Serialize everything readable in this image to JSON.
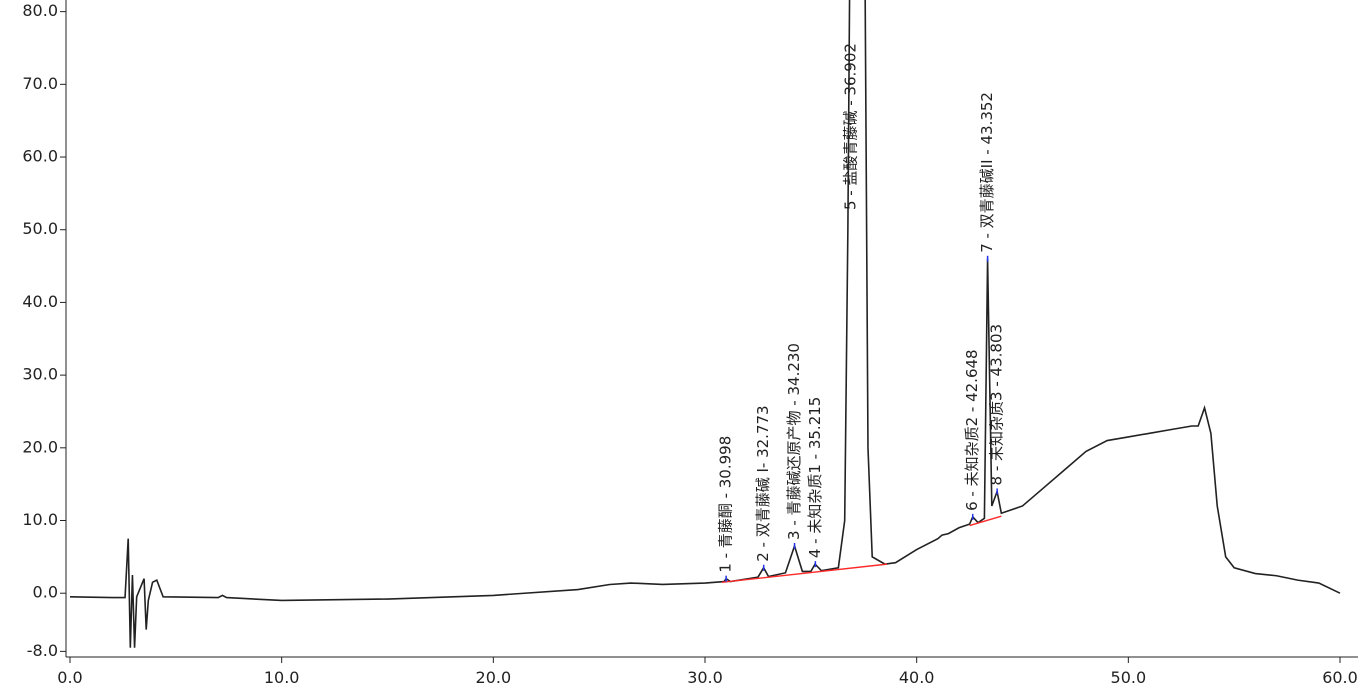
{
  "chart_data": {
    "type": "line",
    "x": [
      0,
      2,
      2.6,
      2.75,
      2.85,
      2.95,
      3.05,
      3.15,
      3.5,
      3.6,
      3.7,
      3.9,
      4.1,
      4.4,
      7,
      7.2,
      7.4,
      10,
      15,
      20,
      24,
      25.5,
      26.5,
      28,
      30,
      30.9,
      31.0,
      31.2,
      32.5,
      32.77,
      33.0,
      33.8,
      34.23,
      34.6,
      35.0,
      35.2,
      35.5,
      36.3,
      36.6,
      36.75,
      36.85,
      37.55,
      37.7,
      37.9,
      38.5,
      39,
      40,
      41,
      41.2,
      41.5,
      42,
      42.5,
      42.65,
      42.9,
      43.2,
      43.35,
      43.55,
      43.8,
      44.0,
      45,
      46,
      47,
      48,
      49,
      50,
      51,
      52,
      53,
      53.3,
      53.6,
      53.9,
      54.2,
      54.6,
      55,
      56,
      57,
      58,
      59,
      60
    ],
    "series": [
      {
        "color": "#222222",
        "values": [
          -0.5,
          -0.6,
          -0.6,
          7.5,
          -7.5,
          2.5,
          -7.5,
          -0.5,
          2,
          -5,
          -1,
          1.5,
          1.8,
          -0.5,
          -0.6,
          -0.3,
          -0.6,
          -1,
          -0.8,
          -0.3,
          0.5,
          1.2,
          1.4,
          1.2,
          1.4,
          1.6,
          2.0,
          1.6,
          2.2,
          3.5,
          2.3,
          2.8,
          6.5,
          3,
          3.0,
          4.0,
          3.1,
          3.5,
          10,
          50,
          90,
          90,
          20,
          5,
          4.0,
          4.2,
          6,
          7.5,
          8,
          8.2,
          9,
          9.5,
          10.5,
          9.7,
          10.3,
          46,
          12,
          14,
          11,
          12,
          14.5,
          17,
          19.5,
          21,
          21.5,
          22,
          22.5,
          23,
          23,
          25.5,
          22,
          12,
          5,
          3.5,
          2.7,
          2.4,
          1.8,
          1.4,
          0
        ]
      }
    ],
    "baselines": [
      {
        "color": "#ff2a2a",
        "x": [
          30.8,
          38.6
        ],
        "y": [
          1.5,
          4.0
        ]
      },
      {
        "color": "#ff2a2a",
        "x": [
          42.5,
          44.0
        ],
        "y": [
          9.3,
          10.6
        ]
      }
    ],
    "peaks": [
      {
        "label": "1 - 青藤酮 - 30.998",
        "rt": 30.998,
        "height": 2.0
      },
      {
        "label": "2 - 双青藤碱 Ⅰ- 32.773",
        "rt": 32.773,
        "height": 3.5
      },
      {
        "label": "3 - 青藤碱还原产物 - 34.230",
        "rt": 34.23,
        "height": 6.5
      },
      {
        "label": "4 - 未知杂质1 - 35.215",
        "rt": 35.215,
        "height": 4.0
      },
      {
        "label": "5 - 盐酸青藤碱 - 36.902",
        "rt": 36.902,
        "height": 90
      },
      {
        "label": "6 - 未知杂质2 - 42.648",
        "rt": 42.648,
        "height": 10.5
      },
      {
        "label": "7 - 双青藤碱II - 43.352",
        "rt": 43.352,
        "height": 46
      },
      {
        "label": "8 - 未知杂质3 - 43.803",
        "rt": 43.803,
        "height": 14
      }
    ],
    "xlim": [
      0,
      60
    ],
    "xticks": [
      {
        "value": 0,
        "label": "0.0"
      },
      {
        "value": 10,
        "label": "10.0"
      },
      {
        "value": 20,
        "label": "20.0"
      },
      {
        "value": 30,
        "label": "30.0"
      },
      {
        "value": 40,
        "label": "40.0"
      },
      {
        "value": 50,
        "label": "50.0"
      },
      {
        "value": 60,
        "label": "60.0"
      }
    ],
    "ylim": [
      -8.5,
      80.5
    ],
    "yticks": [
      {
        "value": -8,
        "label": "-8.0"
      },
      {
        "value": 0,
        "label": "0.0"
      },
      {
        "value": 10,
        "label": "10.0"
      },
      {
        "value": 20,
        "label": "20.0"
      },
      {
        "value": 30,
        "label": "30.0"
      },
      {
        "value": 40,
        "label": "40.0"
      },
      {
        "value": 50,
        "label": "50.0"
      },
      {
        "value": 60,
        "label": "60.0"
      },
      {
        "value": 70,
        "label": "70.0"
      },
      {
        "value": 80,
        "label": "80.0"
      }
    ]
  }
}
